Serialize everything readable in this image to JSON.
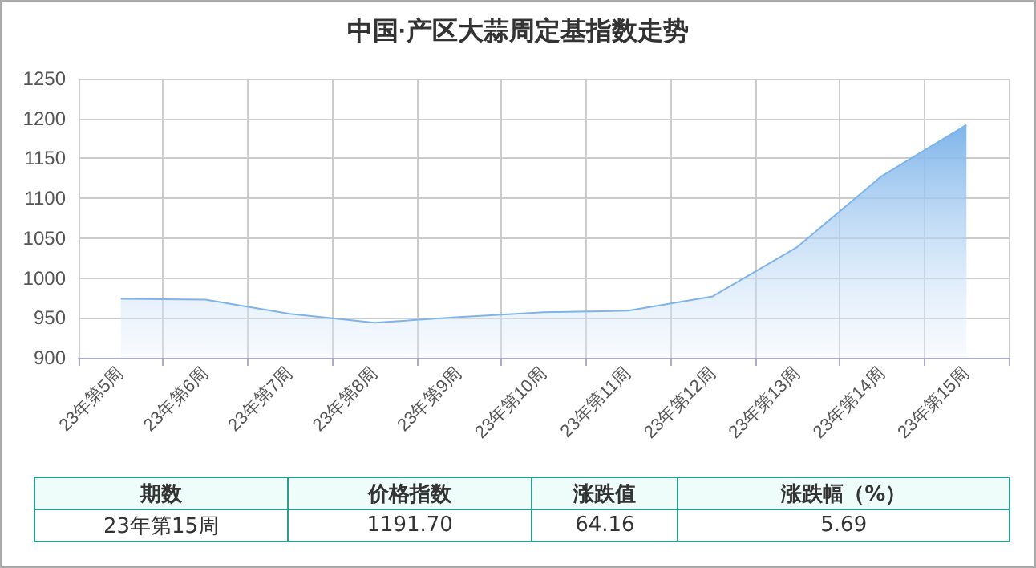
{
  "chart_data": {
    "type": "area",
    "title": "中国·产区大蒜周定基指数走势",
    "categories": [
      "23年第5周",
      "23年第6周",
      "23年第7周",
      "23年第8周",
      "23年第9周",
      "23年第10周",
      "23年第11周",
      "23年第12周",
      "23年第13周",
      "23年第14周",
      "23年第15周"
    ],
    "values": [
      974,
      973,
      955,
      944,
      951,
      957,
      959,
      977,
      1039,
      1128,
      1192
    ],
    "color": "#7eb4ea",
    "ylim": [
      900,
      1250
    ],
    "yticks": [
      900,
      950,
      1000,
      1050,
      1100,
      1150,
      1200,
      1250
    ],
    "grid": true,
    "marker": "none",
    "annotations": [
      "期数",
      "价格指数",
      "涨跌值",
      "涨跌幅（%）",
      "23年第15周",
      "1191.70",
      "64.16",
      "5.69"
    ]
  }
}
